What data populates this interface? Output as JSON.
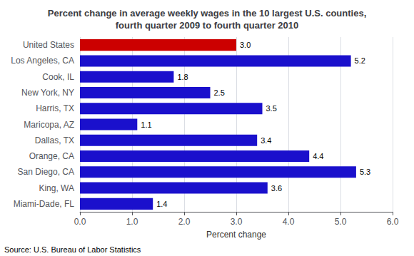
{
  "chart_data": {
    "type": "bar",
    "orientation": "horizontal",
    "title": "Percent change in average weekly wages in the 10 largest U.S. counties,\nfourth quarter 2009 to fourth quarter 2010",
    "categories": [
      "United States",
      "Los Angeles, CA",
      "Cook, IL",
      "New York, NY",
      "Harris, TX",
      "Maricopa, AZ",
      "Dallas, TX",
      "Orange, CA",
      "San Diego, CA",
      "King, WA",
      "Miami-Dade, FL"
    ],
    "values": [
      3.0,
      5.2,
      1.8,
      2.5,
      3.5,
      1.1,
      3.4,
      4.4,
      5.3,
      3.6,
      1.4
    ],
    "value_labels": [
      "3.0",
      "5.2",
      "1.8",
      "2.5",
      "3.5",
      "1.1",
      "3.4",
      "4.4",
      "5.3",
      "3.6",
      "1.4"
    ],
    "colors": [
      "#cc0000",
      "#1a10cc",
      "#1a10cc",
      "#1a10cc",
      "#1a10cc",
      "#1a10cc",
      "#1a10cc",
      "#1a10cc",
      "#1a10cc",
      "#1a10cc",
      "#1a10cc"
    ],
    "xlabel": "Percent change",
    "xlim": [
      0,
      6.0
    ],
    "xticks": [
      {
        "value": 0,
        "label": "0.0"
      },
      {
        "value": 1,
        "label": "1.0"
      },
      {
        "value": 2,
        "label": "2.0"
      },
      {
        "value": 3,
        "label": "3.0"
      },
      {
        "value": 4,
        "label": "4.0"
      },
      {
        "value": 5,
        "label": "5.0"
      },
      {
        "value": 6,
        "label": "6.0"
      }
    ],
    "data_labels": true,
    "grid": true,
    "annotations": [
      "Source: U.S. Bureau of Labor Statistics"
    ]
  }
}
